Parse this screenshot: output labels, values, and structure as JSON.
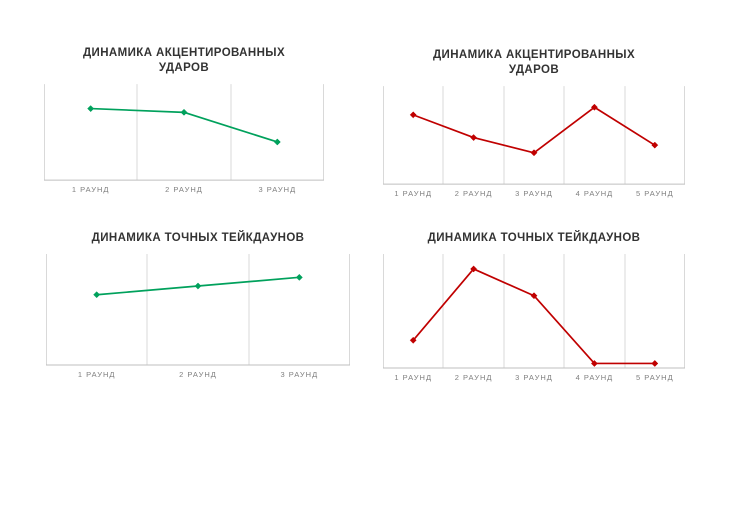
{
  "page": {
    "background_color": "#ffffff",
    "gridline_color": "#d9d9d9",
    "axis_line_color": "#bfbfbf",
    "title_color": "#333333",
    "label_color": "#7f7f7f"
  },
  "chart_data": [
    {
      "type": "line",
      "title": "ДИНАМИКА АКЦЕНТИРОВАННЫХ УДАРОВ",
      "categories": [
        "1 РАУНД",
        "2 РАУНД",
        "3 РАУНД"
      ],
      "values": [
        9.5,
        9,
        5
      ],
      "ylim": [
        0,
        12
      ],
      "color": "#00a15c",
      "marker": "diamond",
      "grid": "vertical",
      "legend": false,
      "xlabel": "",
      "ylabel": ""
    },
    {
      "type": "line",
      "title": "ДИНАМИКА АКЦЕНТИРОВАННЫХ УДАРОВ",
      "categories": [
        "1 РАУНД",
        "2 РАУНД",
        "3 РАУНД",
        "4 РАУНД",
        "5 РАУНД"
      ],
      "values": [
        9,
        6,
        4,
        10,
        5
      ],
      "ylim": [
        0,
        12
      ],
      "color": "#c00000",
      "marker": "diamond",
      "grid": "vertical",
      "legend": false,
      "xlabel": "",
      "ylabel": ""
    },
    {
      "type": "line",
      "title": "ДИНАМИКА ТОЧНЫХ ТЕЙКДАУНОВ",
      "categories": [
        "1 РАУНД",
        "2 РАУНД",
        "3 РАУНД"
      ],
      "values": [
        4,
        4.5,
        5
      ],
      "ylim": [
        0,
        6
      ],
      "color": "#00a15c",
      "marker": "diamond",
      "grid": "vertical",
      "legend": false,
      "xlabel": "",
      "ylabel": ""
    },
    {
      "type": "line",
      "title": "ДИНАМИКА ТОЧНЫХ ТЕЙКДАУНОВ",
      "categories": [
        "1 РАУНД",
        "2 РАУНД",
        "3 РАУНД",
        "4 РАУНД",
        "5 РАУНД"
      ],
      "values": [
        1.5,
        5.5,
        4,
        0.2,
        0.2
      ],
      "ylim": [
        0,
        6
      ],
      "color": "#c00000",
      "marker": "diamond",
      "grid": "vertical",
      "legend": false,
      "xlabel": "",
      "ylabel": ""
    }
  ]
}
